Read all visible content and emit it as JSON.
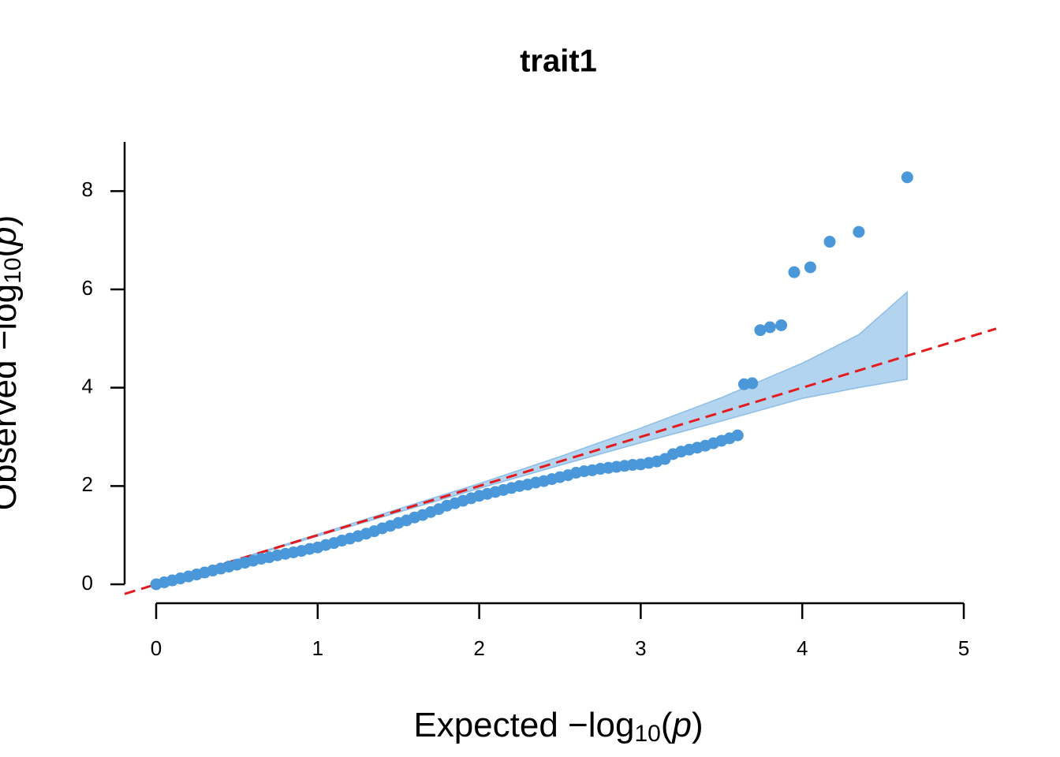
{
  "chart_data": {
    "type": "qq",
    "title": "trait1",
    "xlabel": [
      "Expected  −log",
      "10",
      "(",
      "p",
      ")"
    ],
    "ylabel": [
      "Observed  −log",
      "10",
      "(",
      "p",
      ")"
    ],
    "xlim": [
      0,
      5
    ],
    "xticks": [
      0,
      1,
      2,
      3,
      4,
      5
    ],
    "ylim": [
      0,
      9
    ],
    "yticks": [
      0,
      2,
      4,
      6,
      8
    ],
    "color": "#4a97d9",
    "band_color": "#b3d4ef",
    "reference_color": "#e41a1c",
    "points": {
      "x": [
        0,
        0.05,
        0.1,
        0.15,
        0.2,
        0.25,
        0.3,
        0.35,
        0.4,
        0.45,
        0.5,
        0.55,
        0.6,
        0.65,
        0.7,
        0.75,
        0.8,
        0.85,
        0.9,
        0.95,
        1.0,
        1.05,
        1.1,
        1.15,
        1.2,
        1.25,
        1.3,
        1.35,
        1.4,
        1.45,
        1.5,
        1.55,
        1.6,
        1.65,
        1.7,
        1.75,
        1.8,
        1.85,
        1.9,
        1.95,
        2.0,
        2.05,
        2.1,
        2.15,
        2.2,
        2.25,
        2.3,
        2.35,
        2.4,
        2.45,
        2.5,
        2.55,
        2.6,
        2.65,
        2.7,
        2.75,
        2.8,
        2.85,
        2.9,
        2.95,
        3.0,
        3.05,
        3.1,
        3.15,
        3.2,
        3.25,
        3.3,
        3.35,
        3.4,
        3.45,
        3.5,
        3.55,
        3.6,
        3.64,
        3.69,
        3.74,
        3.8,
        3.87,
        3.95,
        4.05,
        4.17,
        4.35,
        4.65
      ],
      "y": [
        0,
        0.04,
        0.08,
        0.12,
        0.16,
        0.2,
        0.24,
        0.28,
        0.32,
        0.36,
        0.4,
        0.44,
        0.48,
        0.52,
        0.55,
        0.59,
        0.62,
        0.65,
        0.68,
        0.72,
        0.75,
        0.8,
        0.84,
        0.89,
        0.93,
        0.98,
        1.03,
        1.08,
        1.14,
        1.19,
        1.25,
        1.3,
        1.36,
        1.41,
        1.47,
        1.53,
        1.6,
        1.65,
        1.7,
        1.75,
        1.8,
        1.84,
        1.88,
        1.92,
        1.96,
        2.0,
        2.03,
        2.07,
        2.1,
        2.14,
        2.18,
        2.22,
        2.27,
        2.3,
        2.32,
        2.35,
        2.37,
        2.39,
        2.41,
        2.43,
        2.44,
        2.47,
        2.5,
        2.55,
        2.65,
        2.7,
        2.74,
        2.78,
        2.82,
        2.87,
        2.92,
        2.97,
        3.03,
        4.07,
        4.09,
        5.17,
        5.23,
        5.27,
        6.35,
        6.45,
        6.97,
        7.17,
        8.28
      ]
    },
    "band": {
      "x": [
        0,
        1,
        2,
        2.5,
        3,
        3.5,
        4,
        4.35,
        4.65
      ],
      "upper": [
        0,
        1.02,
        2.05,
        2.6,
        3.18,
        3.8,
        4.5,
        5.08,
        5.95
      ],
      "lower": [
        0,
        0.98,
        1.95,
        2.42,
        2.88,
        3.32,
        3.78,
        4.0,
        4.17
      ]
    }
  }
}
